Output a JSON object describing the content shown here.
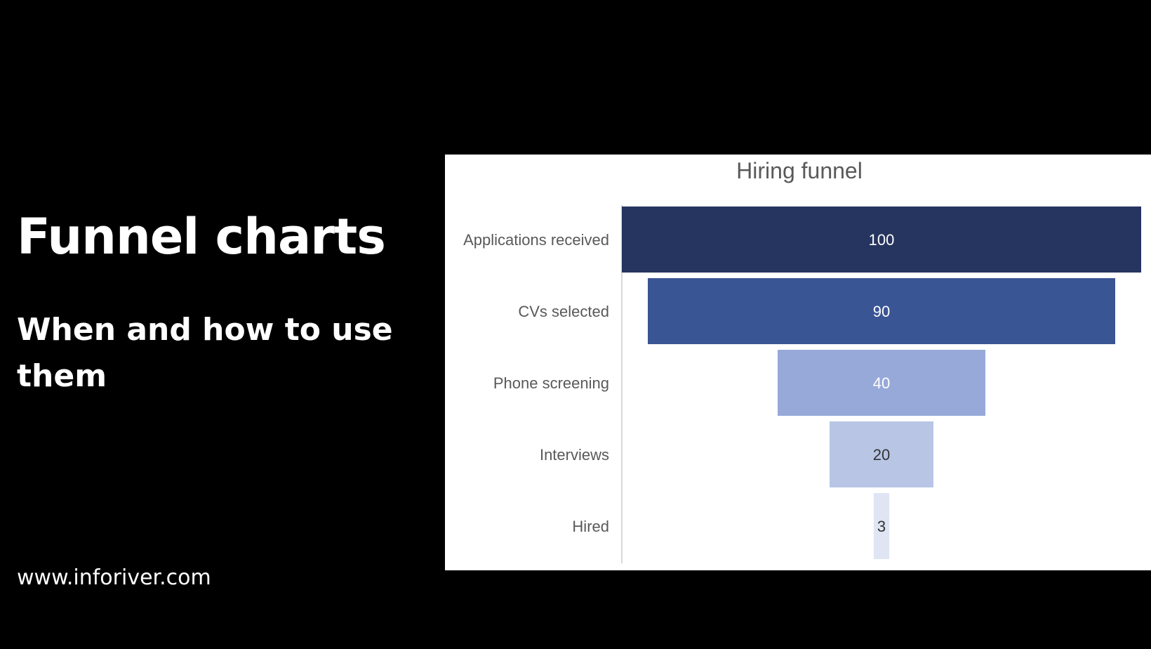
{
  "slide": {
    "headline": "Funnel charts",
    "subhead": "When and how to use them",
    "url": "www.inforiver.com"
  },
  "chart_data": {
    "type": "funnel",
    "title": "Hiring funnel",
    "categories": [
      "Applications received",
      "CVs selected",
      "Phone screening",
      "Interviews",
      "Hired"
    ],
    "values": [
      100,
      90,
      40,
      20,
      3
    ],
    "data_labels": [
      "100",
      "90",
      "40",
      "20",
      "3"
    ],
    "colors": [
      "#26355F",
      "#3A5594",
      "#97A9D8",
      "#B8C5E4",
      "#DFE5F3"
    ],
    "label_colors": [
      "#ffffff",
      "#ffffff",
      "#ffffff",
      "#333333",
      "#333333"
    ],
    "xlim": [
      0,
      100
    ]
  }
}
